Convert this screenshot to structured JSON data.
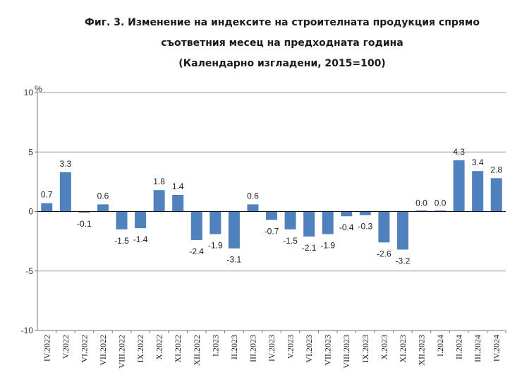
{
  "chart_data": {
    "type": "bar",
    "title_lines": [
      "Фиг. 3. Изменение на индексите на строителната продукция спрямо",
      "съответния месец на предходната година",
      "(Календарно изгладени, 2015=100)"
    ],
    "ylabel": "%",
    "ylim": [
      -10,
      10
    ],
    "yticks": [
      10,
      5,
      0,
      -5,
      -10
    ],
    "ytick_labels": [
      "10",
      "5",
      "0",
      "-5",
      "-10"
    ],
    "grid": true,
    "bar_color": "#4f81bd",
    "categories": [
      "IV.2022",
      "V.2022",
      "VI.2022",
      "VII.2022",
      "VIII.2022",
      "IX.2022",
      "X.2022",
      "XI.2022",
      "XII.2022",
      "I.2023",
      "II.2023",
      "III.2023",
      "IV.2023",
      "V.2023",
      "VI.2023",
      "VII.2023",
      "VIII.2023",
      "IX.2023",
      "X.2023",
      "XI.2023",
      "XII.2023",
      "I.2024",
      "II.2024",
      "III.2024",
      "IV.2024"
    ],
    "values": [
      0.7,
      3.3,
      -0.1,
      0.6,
      -1.5,
      -1.4,
      1.8,
      1.4,
      -2.4,
      -1.9,
      -3.1,
      0.6,
      -0.7,
      -1.5,
      -2.1,
      -1.9,
      -0.4,
      -0.3,
      -2.6,
      -3.2,
      0.0,
      0.0,
      4.3,
      3.4,
      2.8
    ],
    "value_labels": [
      "0.7",
      "3.3",
      "-0.1",
      "0.6",
      "-1.5",
      "-1.4",
      "1.8",
      "1.4",
      "-2.4",
      "-1.9",
      "-3.1",
      "0.6",
      "-0.7",
      "-1.5",
      "-2.1",
      "-1.9",
      "-0.4",
      "-0.3",
      "-2.6",
      "-3.2",
      "0.0",
      "0.0",
      "4.3",
      "3.4",
      "2.8"
    ]
  }
}
